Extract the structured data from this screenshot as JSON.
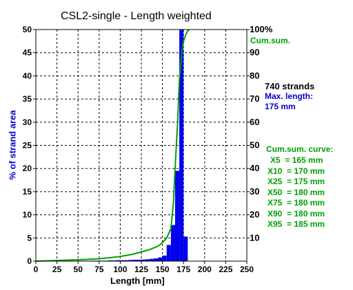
{
  "chart_data": {
    "type": "bar",
    "title": "CSL2-single - Length weighted",
    "xlabel": "Length [mm]",
    "ylabel": "% of strand area",
    "xlim": [
      0,
      250
    ],
    "ylim": [
      0,
      50
    ],
    "xticks": [
      "0",
      "25",
      "50",
      "75",
      "100",
      "125",
      "150",
      "175",
      "200",
      "225",
      "250"
    ],
    "yticks": [
      "0",
      "5",
      "10",
      "15",
      "20",
      "25",
      "30",
      "35",
      "40",
      "45",
      "50"
    ],
    "y2ticks": [
      "10",
      "20",
      "30",
      "40",
      "50",
      "60",
      "70",
      "80",
      "90",
      "100%"
    ],
    "grid": true,
    "bin_width": 5,
    "series": [
      {
        "name": "",
        "color": "#0000ee",
        "bins": [
          {
            "x": 0,
            "y": 0.05
          },
          {
            "x": 5,
            "y": 0.05
          },
          {
            "x": 10,
            "y": 0.05
          },
          {
            "x": 15,
            "y": 0.05
          },
          {
            "x": 20,
            "y": 0.05
          },
          {
            "x": 25,
            "y": 0.05
          },
          {
            "x": 30,
            "y": 0.05
          },
          {
            "x": 35,
            "y": 0.05
          },
          {
            "x": 40,
            "y": 0.05
          },
          {
            "x": 45,
            "y": 0.05
          },
          {
            "x": 50,
            "y": 0.05
          },
          {
            "x": 55,
            "y": 0.05
          },
          {
            "x": 60,
            "y": 0.05
          },
          {
            "x": 65,
            "y": 0.1
          },
          {
            "x": 70,
            "y": 0.1
          },
          {
            "x": 75,
            "y": 0.1
          },
          {
            "x": 80,
            "y": 0.1
          },
          {
            "x": 85,
            "y": 0.15
          },
          {
            "x": 90,
            "y": 0.15
          },
          {
            "x": 95,
            "y": 0.2
          },
          {
            "x": 100,
            "y": 0.2
          },
          {
            "x": 105,
            "y": 0.2
          },
          {
            "x": 110,
            "y": 0.25
          },
          {
            "x": 115,
            "y": 0.3
          },
          {
            "x": 120,
            "y": 0.3
          },
          {
            "x": 125,
            "y": 0.35
          },
          {
            "x": 130,
            "y": 0.4
          },
          {
            "x": 135,
            "y": 0.5
          },
          {
            "x": 140,
            "y": 0.6
          },
          {
            "x": 145,
            "y": 0.8
          },
          {
            "x": 150,
            "y": 1.2
          },
          {
            "x": 155,
            "y": 3.5
          },
          {
            "x": 160,
            "y": 7.8
          },
          {
            "x": 165,
            "y": 19.5
          },
          {
            "x": 170,
            "y": 50
          },
          {
            "x": 175,
            "y": 5.3
          },
          {
            "x": 180,
            "y": 0
          }
        ]
      },
      {
        "name": "Cum.sum.",
        "color": "#00a000",
        "axis": "right",
        "points": [
          [
            0,
            0
          ],
          [
            25,
            0.3
          ],
          [
            50,
            0.6
          ],
          [
            75,
            1
          ],
          [
            100,
            2
          ],
          [
            115,
            3
          ],
          [
            125,
            4
          ],
          [
            135,
            5
          ],
          [
            145,
            6.5
          ],
          [
            150,
            8
          ],
          [
            155,
            10
          ],
          [
            160,
            14
          ],
          [
            163,
            25
          ],
          [
            165,
            40
          ],
          [
            168,
            60
          ],
          [
            170,
            78
          ],
          [
            173,
            90
          ],
          [
            175,
            95
          ],
          [
            178,
            98
          ],
          [
            180,
            99.5
          ],
          [
            182,
            100
          ]
        ]
      }
    ],
    "annotations": {
      "cum_label": "Cum.sum.",
      "strands": "740 strands",
      "max_length_label": "Max. length:",
      "max_length_value": "175 mm",
      "curve_title": "Cum.sum. curve:",
      "percentiles": [
        "X5  = 165 mm",
        "X10  = 170 mm",
        "X25  = 175 mm",
        "X50  = 180 mm",
        "X75  = 180 mm",
        "X90  = 180 mm",
        "X95  = 185 mm"
      ]
    }
  },
  "colors": {
    "bar": "#0000ee",
    "cumulative": "#00a000",
    "max_length_text": "#0000cc",
    "ylabel": "#0000cc",
    "text": "#000000"
  }
}
